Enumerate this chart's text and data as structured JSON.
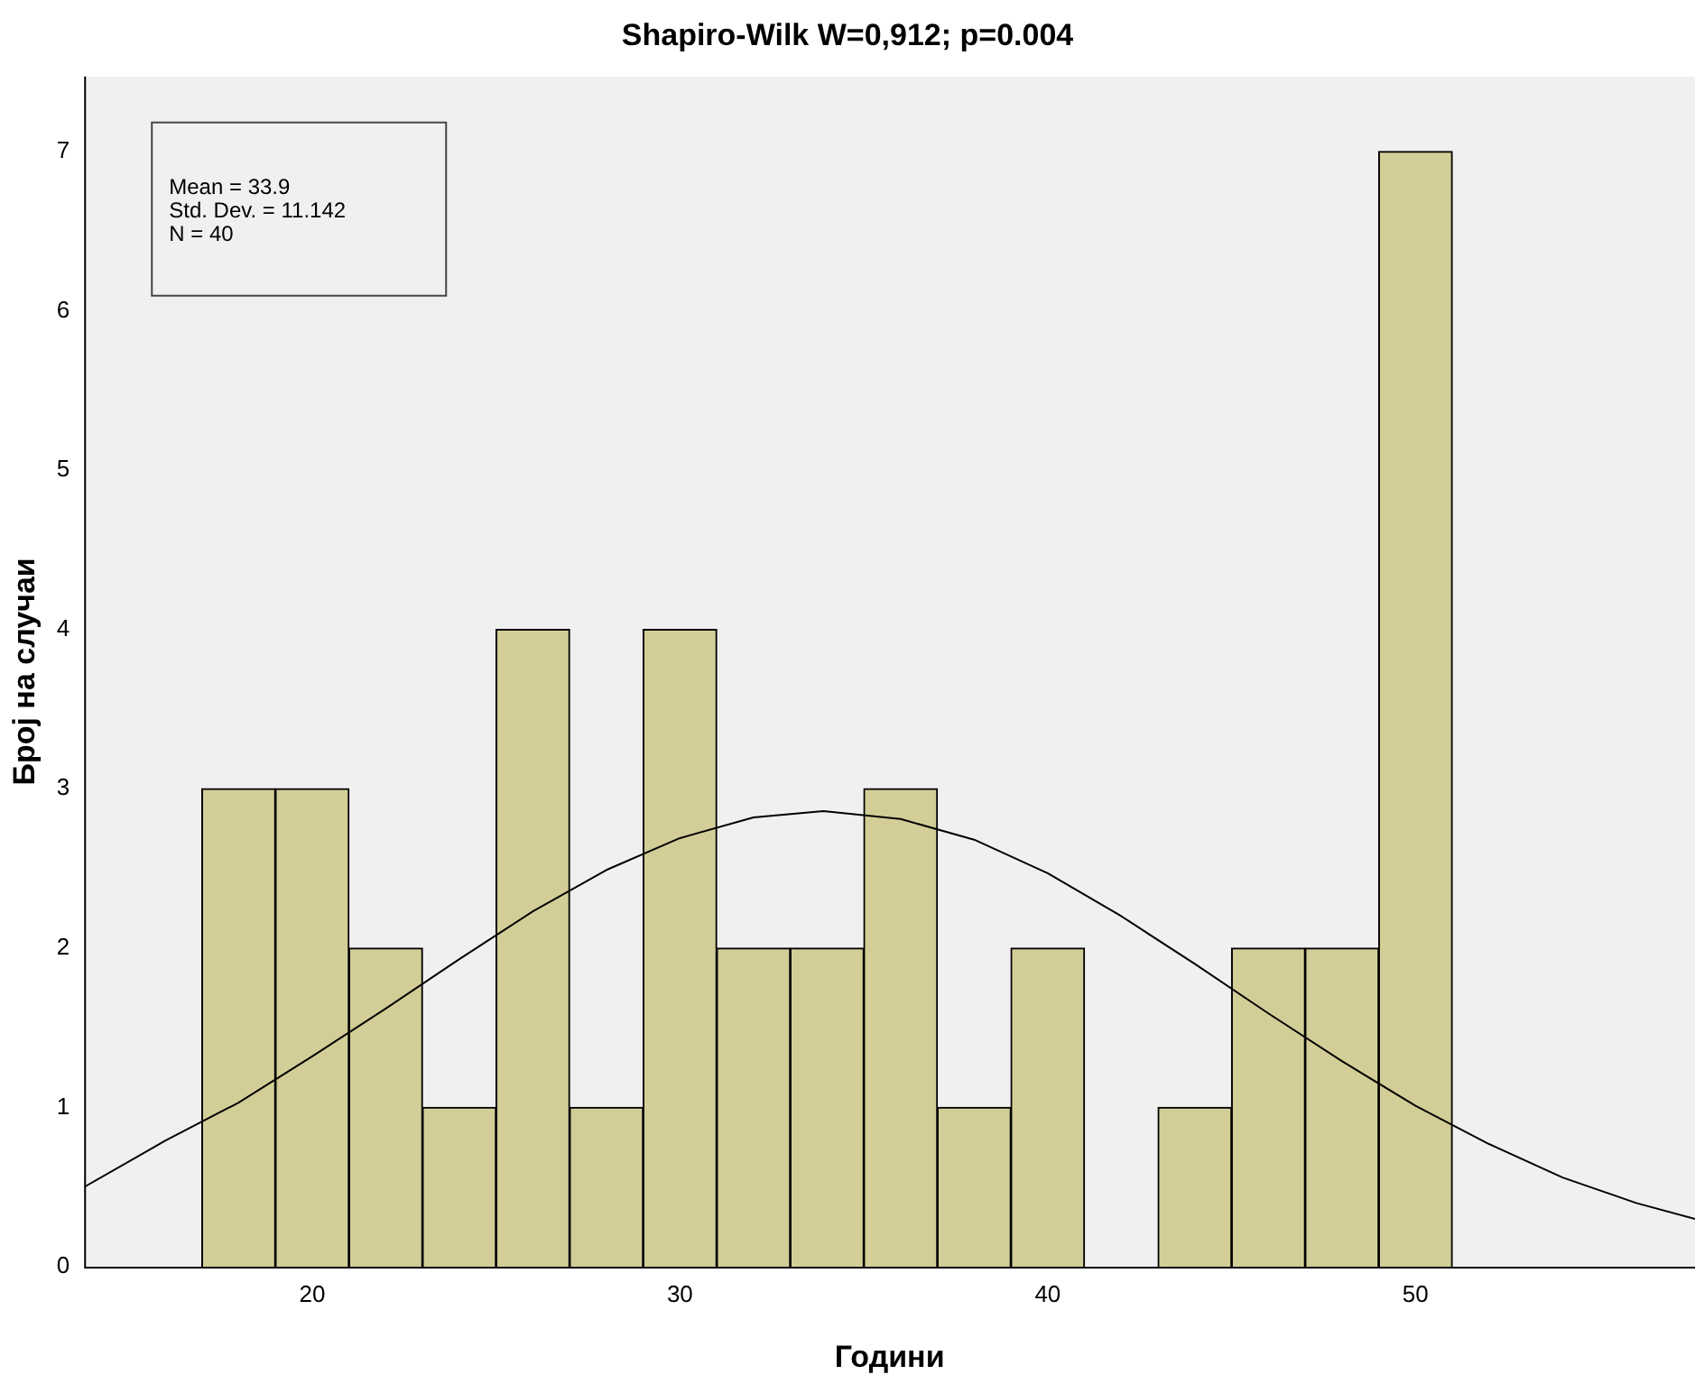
{
  "chart_data": {
    "type": "histogram",
    "title": "Shapiro-Wilk W=0,912; p=0.004",
    "xlabel": "Години",
    "ylabel": "Број на случаи",
    "bins": [
      17,
      19,
      21,
      23,
      25,
      27,
      29,
      31,
      33,
      35,
      37,
      39,
      41,
      43,
      45,
      47,
      49,
      51
    ],
    "values": [
      3,
      3,
      2,
      1,
      4,
      1,
      4,
      2,
      2,
      3,
      1,
      2,
      0,
      1,
      2,
      2,
      7
    ],
    "color": "#d3ce97",
    "series": [
      {
        "type": "line",
        "color": "#000000",
        "x": [
          13.8,
          16,
          18,
          20,
          22,
          24,
          26,
          28,
          30,
          32,
          33.9,
          36,
          38,
          40,
          42,
          44,
          46,
          48,
          50,
          52,
          54,
          56,
          57.6
        ],
        "values": [
          0.5,
          0.79,
          1.03,
          1.32,
          1.62,
          1.93,
          2.23,
          2.49,
          2.69,
          2.82,
          2.86,
          2.81,
          2.68,
          2.47,
          2.2,
          1.9,
          1.59,
          1.29,
          1.01,
          0.77,
          0.56,
          0.4,
          0.3
        ]
      }
    ],
    "xlim": [
      13.8,
      57.6
    ],
    "xticks": [
      20,
      30,
      40,
      50
    ],
    "ylim": [
      0,
      7.47
    ],
    "yticks": [
      0,
      1,
      2,
      3,
      4,
      5,
      6,
      7
    ],
    "grid": false,
    "legend": false,
    "marker": "none",
    "annotations": [
      "Mean = 33.9",
      "Std. Dev. = 11.142",
      "N = 40"
    ]
  }
}
